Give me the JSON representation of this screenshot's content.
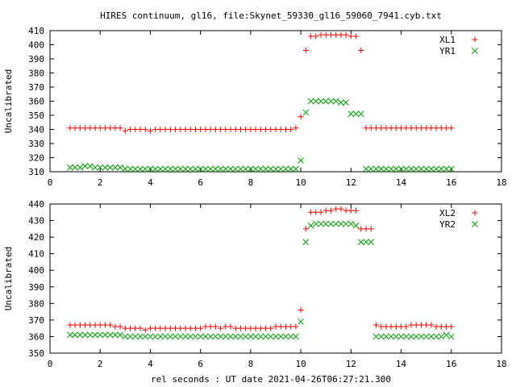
{
  "title": "HIRES continuum, gl16, file:Skynet_59330_gl16_59060_7941.cyb.txt",
  "xlabel": "rel seconds : UT date 2021-04-26T06:27:21.300",
  "colors": {
    "series1": "#ff0000",
    "series2": "#00a000",
    "axes": "#000000"
  },
  "chart_data": [
    {
      "type": "scatter",
      "ylabel": "Uncalibrated",
      "xlim": [
        0,
        18
      ],
      "ylim": [
        310,
        410
      ],
      "xticks": [
        0,
        2,
        4,
        6,
        8,
        10,
        12,
        14,
        16,
        18
      ],
      "yticks": [
        310,
        320,
        330,
        340,
        350,
        360,
        370,
        380,
        390,
        400,
        410
      ],
      "grid": false,
      "legend_position": "top-right",
      "series": [
        {
          "name": "XL1",
          "marker": "plus",
          "x": [
            0.8,
            1.0,
            1.2,
            1.4,
            1.6,
            1.8,
            2.0,
            2.2,
            2.4,
            2.6,
            2.8,
            3.0,
            3.2,
            3.4,
            3.6,
            3.8,
            4.0,
            4.2,
            4.4,
            4.6,
            4.8,
            5.0,
            5.2,
            5.4,
            5.6,
            5.8,
            6.0,
            6.2,
            6.4,
            6.6,
            6.8,
            7.0,
            7.2,
            7.4,
            7.6,
            7.8,
            8.0,
            8.2,
            8.4,
            8.6,
            8.8,
            9.0,
            9.2,
            9.4,
            9.6,
            9.8,
            10.0,
            10.2,
            10.4,
            10.6,
            10.8,
            11.0,
            11.2,
            11.4,
            11.6,
            11.8,
            12.0,
            12.2,
            12.4,
            12.6,
            12.8,
            13.0,
            13.2,
            13.4,
            13.6,
            13.8,
            14.0,
            14.2,
            14.4,
            14.6,
            14.8,
            15.0,
            15.2,
            15.4,
            15.6,
            15.8,
            16.0
          ],
          "values": [
            341,
            341,
            341,
            341,
            341,
            341,
            341,
            341,
            341,
            341,
            341,
            339,
            340,
            340,
            340,
            340,
            339,
            340,
            340,
            340,
            340,
            340,
            340,
            340,
            340,
            340,
            340,
            340,
            340,
            340,
            340,
            340,
            340,
            340,
            340,
            340,
            340,
            340,
            340,
            340,
            340,
            340,
            340,
            340,
            340,
            341,
            349,
            396,
            406,
            406,
            407,
            407,
            407,
            407,
            407,
            407,
            406,
            406,
            396,
            341,
            341,
            341,
            341,
            341,
            341,
            341,
            341,
            341,
            341,
            341,
            341,
            341,
            341,
            341,
            341,
            341,
            341
          ]
        },
        {
          "name": "YR1",
          "marker": "cross",
          "x": [
            0.8,
            1.0,
            1.2,
            1.4,
            1.6,
            1.8,
            2.0,
            2.2,
            2.4,
            2.6,
            2.8,
            3.0,
            3.2,
            3.4,
            3.6,
            3.8,
            4.0,
            4.2,
            4.4,
            4.6,
            4.8,
            5.0,
            5.2,
            5.4,
            5.6,
            5.8,
            6.0,
            6.2,
            6.4,
            6.6,
            6.8,
            7.0,
            7.2,
            7.4,
            7.6,
            7.8,
            8.0,
            8.2,
            8.4,
            8.6,
            8.8,
            9.0,
            9.2,
            9.4,
            9.6,
            9.8,
            10.0,
            10.2,
            10.4,
            10.6,
            10.8,
            11.0,
            11.2,
            11.4,
            11.6,
            11.8,
            12.0,
            12.2,
            12.4,
            12.6,
            12.8,
            13.0,
            13.2,
            13.4,
            13.6,
            13.8,
            14.0,
            14.2,
            14.4,
            14.6,
            14.8,
            15.0,
            15.2,
            15.4,
            15.6,
            15.8,
            16.0
          ],
          "values": [
            313,
            313,
            313,
            314,
            314,
            313,
            313,
            313,
            313,
            313,
            313,
            312,
            312,
            312,
            312,
            312,
            312,
            312,
            312,
            312,
            312,
            312,
            312,
            312,
            312,
            312,
            312,
            312,
            312,
            312,
            312,
            312,
            312,
            312,
            312,
            312,
            312,
            312,
            312,
            312,
            312,
            312,
            312,
            312,
            312,
            312,
            318,
            352,
            360,
            360,
            360,
            360,
            360,
            360,
            359,
            359,
            351,
            351,
            351,
            312,
            312,
            312,
            312,
            312,
            312,
            312,
            312,
            312,
            312,
            312,
            312,
            312,
            312,
            312,
            312,
            312,
            312
          ]
        }
      ]
    },
    {
      "type": "scatter",
      "ylabel": "Uncalibrated",
      "xlim": [
        0,
        18
      ],
      "ylim": [
        350,
        440
      ],
      "xticks": [
        0,
        2,
        4,
        6,
        8,
        10,
        12,
        14,
        16,
        18
      ],
      "yticks": [
        350,
        360,
        370,
        380,
        390,
        400,
        410,
        420,
        430,
        440
      ],
      "grid": false,
      "legend_position": "top-right",
      "series": [
        {
          "name": "XL2",
          "marker": "plus",
          "x": [
            0.8,
            1.0,
            1.2,
            1.4,
            1.6,
            1.8,
            2.0,
            2.2,
            2.4,
            2.6,
            2.8,
            3.0,
            3.2,
            3.4,
            3.6,
            3.8,
            4.0,
            4.2,
            4.4,
            4.6,
            4.8,
            5.0,
            5.2,
            5.4,
            5.6,
            5.8,
            6.0,
            6.2,
            6.4,
            6.6,
            6.8,
            7.0,
            7.2,
            7.4,
            7.6,
            7.8,
            8.0,
            8.2,
            8.4,
            8.6,
            8.8,
            9.0,
            9.2,
            9.4,
            9.6,
            9.8,
            10.0,
            10.2,
            10.4,
            10.6,
            10.8,
            11.0,
            11.2,
            11.4,
            11.6,
            11.8,
            12.0,
            12.2,
            12.4,
            12.6,
            12.8,
            13.0,
            13.2,
            13.4,
            13.6,
            13.8,
            14.0,
            14.2,
            14.4,
            14.6,
            14.8,
            15.0,
            15.2,
            15.4,
            15.6,
            15.8,
            16.0
          ],
          "values": [
            367,
            367,
            367,
            367,
            367,
            367,
            367,
            367,
            367,
            366,
            366,
            365,
            365,
            365,
            365,
            364,
            365,
            365,
            365,
            365,
            365,
            365,
            365,
            365,
            365,
            365,
            365,
            366,
            366,
            366,
            365,
            366,
            366,
            365,
            365,
            365,
            365,
            365,
            365,
            365,
            365,
            366,
            366,
            366,
            366,
            366,
            376,
            425,
            435,
            435,
            435,
            436,
            436,
            437,
            437,
            436,
            436,
            436,
            425,
            425,
            425,
            367,
            366,
            366,
            366,
            366,
            366,
            366,
            367,
            367,
            367,
            367,
            367,
            366,
            366,
            366,
            366
          ]
        },
        {
          "name": "YR2",
          "marker": "cross",
          "x": [
            0.8,
            1.0,
            1.2,
            1.4,
            1.6,
            1.8,
            2.0,
            2.2,
            2.4,
            2.6,
            2.8,
            3.0,
            3.2,
            3.4,
            3.6,
            3.8,
            4.0,
            4.2,
            4.4,
            4.6,
            4.8,
            5.0,
            5.2,
            5.4,
            5.6,
            5.8,
            6.0,
            6.2,
            6.4,
            6.6,
            6.8,
            7.0,
            7.2,
            7.4,
            7.6,
            7.8,
            8.0,
            8.2,
            8.4,
            8.6,
            8.8,
            9.0,
            9.2,
            9.4,
            9.6,
            9.8,
            10.0,
            10.2,
            10.4,
            10.6,
            10.8,
            11.0,
            11.2,
            11.4,
            11.6,
            11.8,
            12.0,
            12.2,
            12.4,
            12.6,
            12.8,
            13.0,
            13.2,
            13.4,
            13.6,
            13.8,
            14.0,
            14.2,
            14.4,
            14.6,
            14.8,
            15.0,
            15.2,
            15.4,
            15.6,
            15.8,
            16.0
          ],
          "values": [
            361,
            361,
            361,
            361,
            361,
            361,
            361,
            361,
            361,
            361,
            361,
            360,
            360,
            360,
            360,
            360,
            360,
            360,
            360,
            360,
            360,
            360,
            360,
            360,
            360,
            360,
            360,
            360,
            360,
            360,
            360,
            360,
            360,
            360,
            360,
            360,
            360,
            360,
            360,
            360,
            360,
            360,
            360,
            360,
            360,
            360,
            369,
            417,
            427,
            428,
            428,
            428,
            428,
            428,
            428,
            428,
            428,
            427,
            417,
            417,
            417,
            360,
            360,
            360,
            360,
            360,
            360,
            360,
            360,
            360,
            360,
            360,
            360,
            360,
            360,
            361,
            360
          ]
        }
      ]
    }
  ]
}
